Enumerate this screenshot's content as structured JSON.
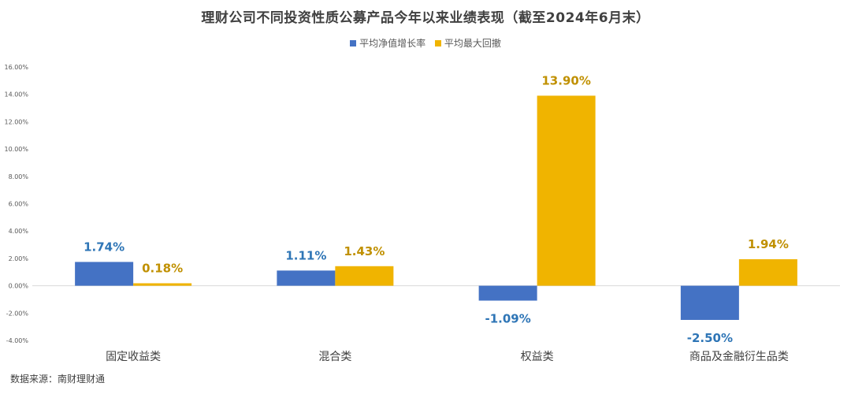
{
  "chart_data": {
    "type": "bar",
    "title": "理财公司不同投资性质公募产品今年以来业绩表现（截至2024年6月末）",
    "categories": [
      "固定收益类",
      "混合类",
      "权益类",
      "商品及金融衍生品类"
    ],
    "series": [
      {
        "name": "平均净值增长率",
        "color": "#4472C4",
        "label_color": "#2E75B6",
        "values": [
          1.74,
          1.11,
          -1.09,
          -2.5
        ],
        "labels": [
          "1.74%",
          "1.11%",
          "-1.09%",
          "-2.50%"
        ]
      },
      {
        "name": "平均最大回撤",
        "color": "#F0B400",
        "label_color": "#C09000",
        "values": [
          0.18,
          1.43,
          13.9,
          1.94
        ],
        "labels": [
          "0.18%",
          "1.43%",
          "13.90%",
          "1.94%"
        ]
      }
    ],
    "ylim": [
      -4,
      16
    ],
    "yticks": [
      -4,
      -2,
      0,
      2,
      4,
      6,
      8,
      10,
      12,
      14,
      16
    ],
    "ytick_labels": [
      "-4.00%",
      "-2.00%",
      "0.00%",
      "2.00%",
      "4.00%",
      "6.00%",
      "8.00%",
      "10.00%",
      "12.00%",
      "14.00%",
      "16.00%"
    ],
    "legend_position": "top-center",
    "grid": false
  },
  "source_note": "数据来源：南财理财通"
}
